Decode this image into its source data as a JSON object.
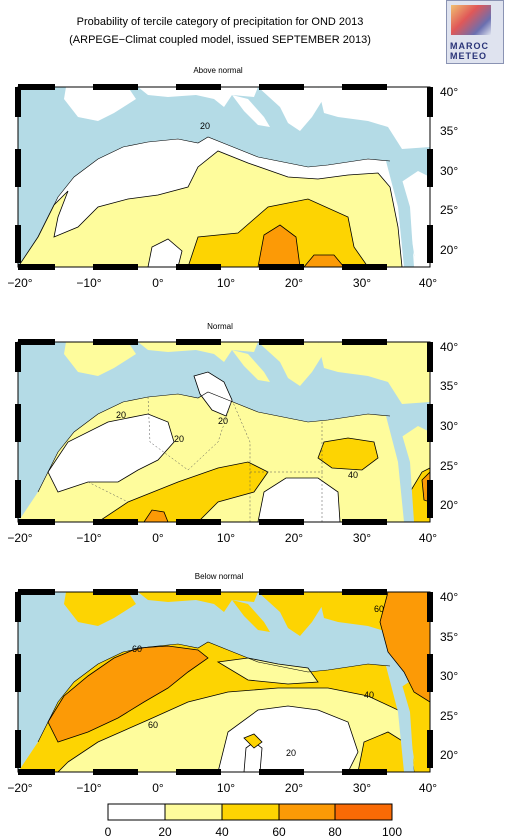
{
  "header": {
    "title": "Probability of tercile category of precipitation for OND 2013",
    "subtitle": "(ARPEGE−Climat coupled model, issued SEPTEMBER 2013)",
    "logo_text_1": "MAROC",
    "logo_text_2": "METEO"
  },
  "axes": {
    "x_ticks": [
      "−20°",
      "−10°",
      "0°",
      "10°",
      "20°",
      "30°",
      "40°"
    ],
    "y_ticks": [
      "40°",
      "35°",
      "30°",
      "25°",
      "20°"
    ]
  },
  "panels": [
    {
      "title": "Above normal",
      "contour_labels": [
        "20"
      ]
    },
    {
      "title": "Normal",
      "contour_labels": [
        "20",
        "20",
        "40",
        "20"
      ]
    },
    {
      "title": "Below normal",
      "contour_labels": [
        "60",
        "40",
        "60",
        "20",
        "60"
      ]
    }
  ],
  "colorbar": {
    "ticks": [
      "0",
      "20",
      "40",
      "60",
      "80",
      "100"
    ],
    "colors": [
      "#ffffff",
      "#fefc9c",
      "#fdd402",
      "#fc9a06",
      "#f96a05"
    ]
  },
  "colors": {
    "sea": "#b4dbe6",
    "land": "#ffffff",
    "border": "#000000"
  }
}
